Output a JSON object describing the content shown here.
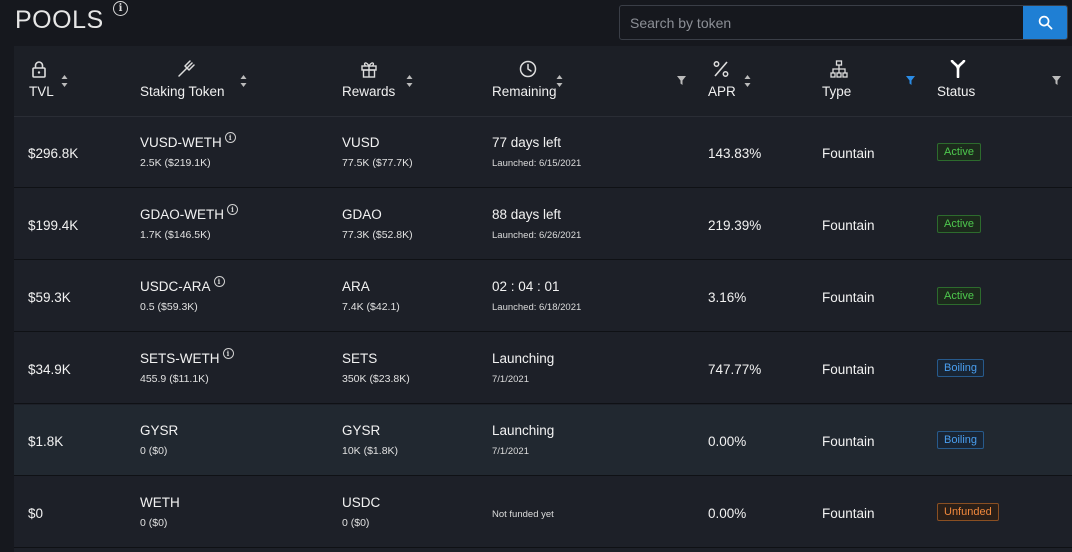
{
  "header": {
    "title": "POOLS",
    "info_glyph": "i",
    "search": {
      "placeholder": "Search by token",
      "value": ""
    }
  },
  "columns": [
    {
      "label": "TVL",
      "icon": "lock-icon"
    },
    {
      "label": "Staking Token",
      "icon": "pitchfork-icon"
    },
    {
      "label": "Rewards",
      "icon": "gift-icon"
    },
    {
      "label": "Remaining",
      "icon": "clock-icon"
    },
    {
      "label": "APR",
      "icon": "percent-icon"
    },
    {
      "label": "Type",
      "icon": "hierarchy-icon"
    },
    {
      "label": "Status",
      "icon": "branch-icon"
    }
  ],
  "rows": [
    {
      "tvl": "$296.8K",
      "token": "VUSD-WETH",
      "token_info": true,
      "token_sub": "2.5K ($219.1K)",
      "reward": "VUSD",
      "reward_sub": "77.5K ($77.7K)",
      "remaining": "77 days left",
      "remaining_sub": "Launched: 6/15/2021",
      "apr": "143.83%",
      "type": "Fountain",
      "status": "Active",
      "status_kind": "active"
    },
    {
      "tvl": "$199.4K",
      "token": "GDAO-WETH",
      "token_info": true,
      "token_sub": "1.7K ($146.5K)",
      "reward": "GDAO",
      "reward_sub": "77.3K ($52.8K)",
      "remaining": "88 days left",
      "remaining_sub": "Launched: 6/26/2021",
      "apr": "219.39%",
      "type": "Fountain",
      "status": "Active",
      "status_kind": "active"
    },
    {
      "tvl": "$59.3K",
      "token": "USDC-ARA",
      "token_info": true,
      "token_sub": "0.5 ($59.3K)",
      "reward": "ARA",
      "reward_sub": "7.4K ($42.1)",
      "remaining": "02 : 04 : 01",
      "remaining_sub": "Launched: 6/18/2021",
      "apr": "3.16%",
      "type": "Fountain",
      "status": "Active",
      "status_kind": "active"
    },
    {
      "tvl": "$34.9K",
      "token": "SETS-WETH",
      "token_info": true,
      "token_sub": "455.9 ($11.1K)",
      "reward": "SETS",
      "reward_sub": "350K ($23.8K)",
      "remaining": "Launching",
      "remaining_sub": "7/1/2021",
      "apr": "747.77%",
      "type": "Fountain",
      "status": "Boiling",
      "status_kind": "boiling"
    },
    {
      "tvl": "$1.8K",
      "token": "GYSR",
      "token_info": false,
      "token_sub": "0 ($0)",
      "reward": "GYSR",
      "reward_sub": "10K ($1.8K)",
      "remaining": "Launching",
      "remaining_sub": "7/1/2021",
      "apr": "0.00%",
      "type": "Fountain",
      "status": "Boiling",
      "status_kind": "boiling"
    },
    {
      "tvl": "$0",
      "token": "WETH",
      "token_info": false,
      "token_sub": "0 ($0)",
      "reward": "USDC",
      "reward_sub": "0 ($0)",
      "remaining": "",
      "remaining_sub": "Not funded yet",
      "apr": "0.00%",
      "type": "Fountain",
      "status": "Unfunded",
      "status_kind": "unfunded"
    }
  ],
  "colors": {
    "accent": "#1f7fd4",
    "active": "#4ec94e",
    "boiling": "#4a9ff0",
    "unfunded": "#f0883c"
  }
}
